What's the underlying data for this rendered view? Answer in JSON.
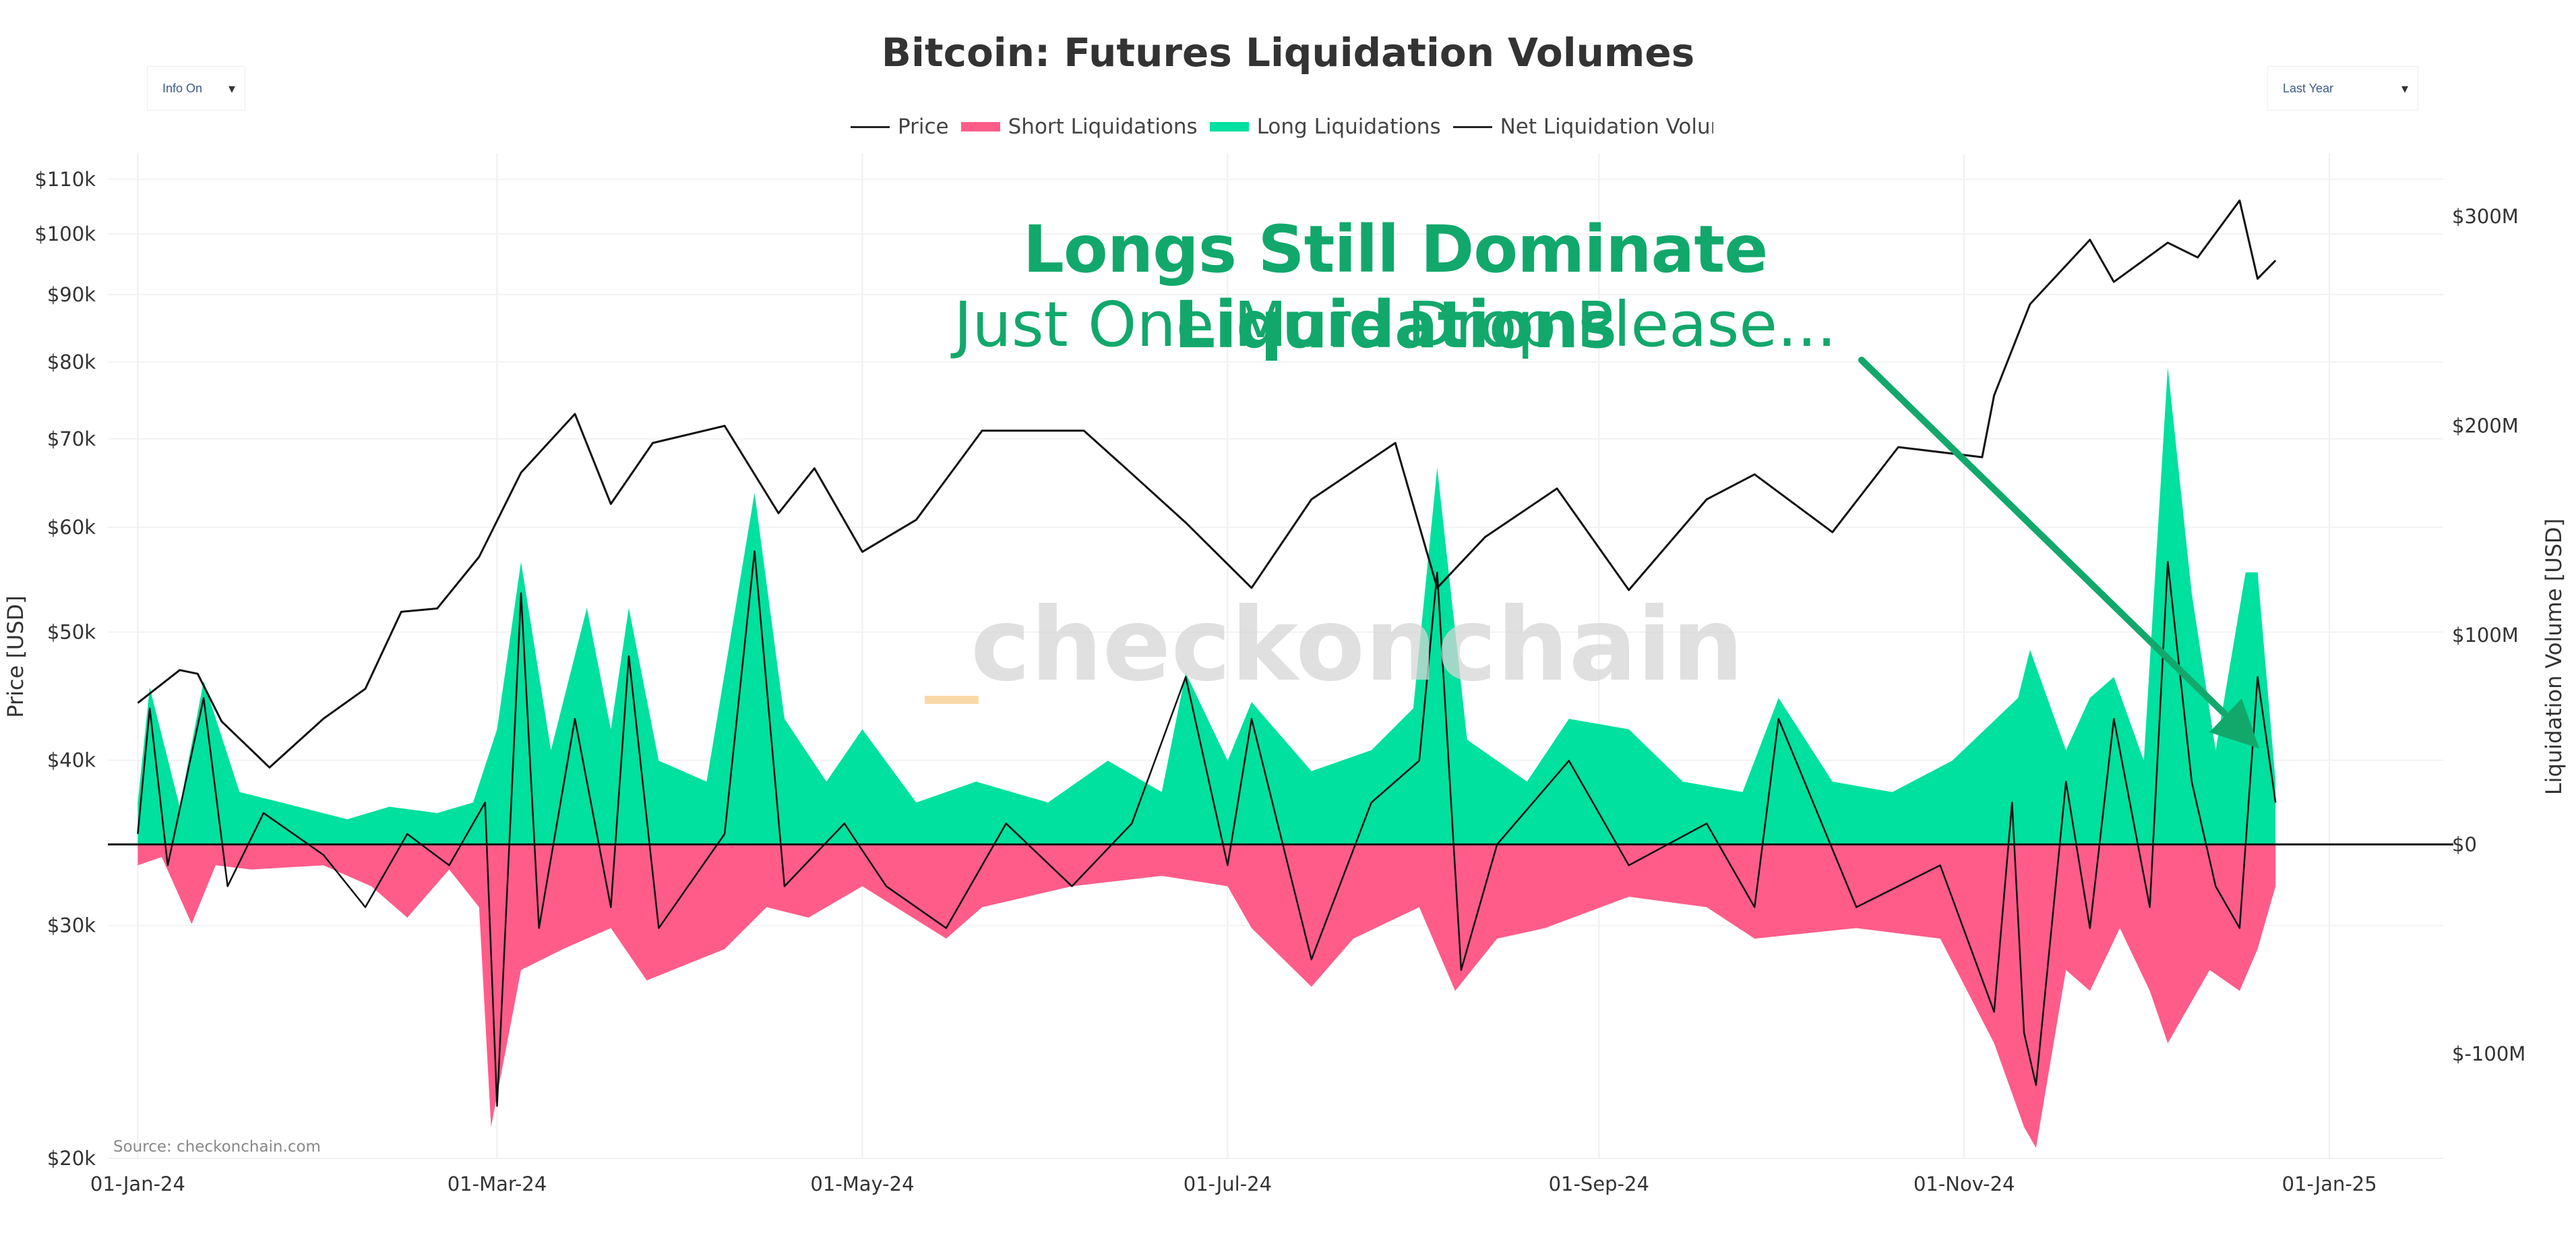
{
  "chart_data": {
    "type": "line",
    "title": "Bitcoin: Futures Liquidation Volumes",
    "headline": "Longs Still Dominate Liquidations",
    "subheadline": "Just One More Drop Please...",
    "watermark": "_checkonchain",
    "source": "Source: checkonchain.com",
    "ylabel_left": "Price [USD]",
    "ylabel_right": "Liquidation Volume [USD]",
    "y_left_scale": "log",
    "y_left_ticks": [
      "$20k",
      "$30k",
      "$40k",
      "$50k",
      "$60k",
      "$70k",
      "$80k",
      "$90k",
      "$100k",
      "$110k"
    ],
    "y_right_ticks": [
      "$-100M",
      "$0",
      "$100M",
      "$200M",
      "$300M"
    ],
    "ylim_left": [
      20000,
      115000
    ],
    "ylim_right": [
      -150000000,
      330000000
    ],
    "x_ticks": [
      "01-Jan-24",
      "01-Mar-24",
      "01-May-24",
      "01-Jul-24",
      "01-Sep-24",
      "01-Nov-24",
      "01-Jan-25"
    ],
    "x_range": [
      "2023-12-27",
      "2025-01-20"
    ],
    "grid": true,
    "legend_position": "top-center",
    "colors": {
      "price": "#111111",
      "short": "#ff5c8a",
      "long": "#00e09e",
      "net": "#111111",
      "headline": "#12a86b"
    },
    "series": [
      {
        "name": "Price",
        "axis": "left",
        "points": [
          [
            "2024-01-01",
            44200
          ],
          [
            "2024-01-08",
            46800
          ],
          [
            "2024-01-11",
            46500
          ],
          [
            "2024-01-15",
            42800
          ],
          [
            "2024-01-23",
            39500
          ],
          [
            "2024-02-01",
            43000
          ],
          [
            "2024-02-08",
            45300
          ],
          [
            "2024-02-14",
            51800
          ],
          [
            "2024-02-20",
            52100
          ],
          [
            "2024-02-27",
            57000
          ],
          [
            "2024-03-05",
            66000
          ],
          [
            "2024-03-14",
            73100
          ],
          [
            "2024-03-20",
            62500
          ],
          [
            "2024-03-27",
            69500
          ],
          [
            "2024-04-08",
            71600
          ],
          [
            "2024-04-17",
            61500
          ],
          [
            "2024-04-23",
            66500
          ],
          [
            "2024-05-01",
            57500
          ],
          [
            "2024-05-10",
            60800
          ],
          [
            "2024-05-21",
            71000
          ],
          [
            "2024-06-07",
            71000
          ],
          [
            "2024-06-14",
            66500
          ],
          [
            "2024-06-24",
            60500
          ],
          [
            "2024-07-05",
            54000
          ],
          [
            "2024-07-15",
            63000
          ],
          [
            "2024-07-29",
            69500
          ],
          [
            "2024-08-05",
            54000
          ],
          [
            "2024-08-13",
            59000
          ],
          [
            "2024-08-25",
            64200
          ],
          [
            "2024-09-06",
            53800
          ],
          [
            "2024-09-19",
            63000
          ],
          [
            "2024-09-27",
            65800
          ],
          [
            "2024-10-10",
            59500
          ],
          [
            "2024-10-21",
            69000
          ],
          [
            "2024-11-04",
            67800
          ],
          [
            "2024-11-06",
            75500
          ],
          [
            "2024-11-12",
            88500
          ],
          [
            "2024-11-22",
            99000
          ],
          [
            "2024-11-26",
            92000
          ],
          [
            "2024-12-05",
            98500
          ],
          [
            "2024-12-10",
            96000
          ],
          [
            "2024-12-17",
            106000
          ],
          [
            "2024-12-20",
            92500
          ],
          [
            "2024-12-23",
            95500
          ]
        ]
      },
      {
        "name": "Short Liquidations",
        "axis": "right",
        "points": [
          [
            "2024-01-01",
            -10000000
          ],
          [
            "2024-01-05",
            -6000000
          ],
          [
            "2024-01-10",
            -38000000
          ],
          [
            "2024-01-14",
            -10000000
          ],
          [
            "2024-01-20",
            -12000000
          ],
          [
            "2024-02-01",
            -10000000
          ],
          [
            "2024-02-09",
            -20000000
          ],
          [
            "2024-02-15",
            -35000000
          ],
          [
            "2024-02-22",
            -12000000
          ],
          [
            "2024-02-27",
            -30000000
          ],
          [
            "2024-02-29",
            -135000000
          ],
          [
            "2024-03-05",
            -60000000
          ],
          [
            "2024-03-12",
            -50000000
          ],
          [
            "2024-03-20",
            -40000000
          ],
          [
            "2024-03-26",
            -65000000
          ],
          [
            "2024-04-08",
            -50000000
          ],
          [
            "2024-04-15",
            -30000000
          ],
          [
            "2024-04-22",
            -35000000
          ],
          [
            "2024-05-01",
            -20000000
          ],
          [
            "2024-05-15",
            -45000000
          ],
          [
            "2024-05-21",
            -30000000
          ],
          [
            "2024-06-05",
            -20000000
          ],
          [
            "2024-06-20",
            -15000000
          ],
          [
            "2024-07-01",
            -20000000
          ],
          [
            "2024-07-05",
            -40000000
          ],
          [
            "2024-07-15",
            -68000000
          ],
          [
            "2024-07-22",
            -45000000
          ],
          [
            "2024-08-02",
            -30000000
          ],
          [
            "2024-08-08",
            -70000000
          ],
          [
            "2024-08-15",
            -45000000
          ],
          [
            "2024-08-23",
            -40000000
          ],
          [
            "2024-09-06",
            -25000000
          ],
          [
            "2024-09-19",
            -30000000
          ],
          [
            "2024-09-27",
            -45000000
          ],
          [
            "2024-10-14",
            -40000000
          ],
          [
            "2024-10-28",
            -45000000
          ],
          [
            "2024-11-06",
            -95000000
          ],
          [
            "2024-11-11",
            -135000000
          ],
          [
            "2024-11-13",
            -145000000
          ],
          [
            "2024-11-18",
            -60000000
          ],
          [
            "2024-11-22",
            -70000000
          ],
          [
            "2024-11-27",
            -40000000
          ],
          [
            "2024-12-02",
            -70000000
          ],
          [
            "2024-12-05",
            -95000000
          ],
          [
            "2024-12-12",
            -60000000
          ],
          [
            "2024-12-17",
            -70000000
          ],
          [
            "2024-12-20",
            -50000000
          ],
          [
            "2024-12-23",
            -20000000
          ]
        ]
      },
      {
        "name": "Long Liquidations",
        "axis": "right",
        "points": [
          [
            "2024-01-01",
            20000000
          ],
          [
            "2024-01-03",
            75000000
          ],
          [
            "2024-01-08",
            18000000
          ],
          [
            "2024-01-12",
            78000000
          ],
          [
            "2024-01-18",
            25000000
          ],
          [
            "2024-01-25",
            20000000
          ],
          [
            "2024-02-05",
            12000000
          ],
          [
            "2024-02-12",
            18000000
          ],
          [
            "2024-02-20",
            15000000
          ],
          [
            "2024-02-26",
            20000000
          ],
          [
            "2024-03-01",
            55000000
          ],
          [
            "2024-03-05",
            135000000
          ],
          [
            "2024-03-10",
            45000000
          ],
          [
            "2024-03-16",
            113000000
          ],
          [
            "2024-03-20",
            55000000
          ],
          [
            "2024-03-23",
            113000000
          ],
          [
            "2024-03-28",
            40000000
          ],
          [
            "2024-04-05",
            30000000
          ],
          [
            "2024-04-13",
            168000000
          ],
          [
            "2024-04-18",
            60000000
          ],
          [
            "2024-04-25",
            30000000
          ],
          [
            "2024-05-01",
            55000000
          ],
          [
            "2024-05-10",
            20000000
          ],
          [
            "2024-05-20",
            30000000
          ],
          [
            "2024-06-01",
            20000000
          ],
          [
            "2024-06-11",
            40000000
          ],
          [
            "2024-06-20",
            25000000
          ],
          [
            "2024-06-24",
            82000000
          ],
          [
            "2024-07-01",
            40000000
          ],
          [
            "2024-07-05",
            68000000
          ],
          [
            "2024-07-15",
            35000000
          ],
          [
            "2024-07-25",
            45000000
          ],
          [
            "2024-08-01",
            65000000
          ],
          [
            "2024-08-05",
            180000000
          ],
          [
            "2024-08-10",
            50000000
          ],
          [
            "2024-08-20",
            30000000
          ],
          [
            "2024-08-27",
            60000000
          ],
          [
            "2024-09-06",
            55000000
          ],
          [
            "2024-09-15",
            30000000
          ],
          [
            "2024-09-25",
            25000000
          ],
          [
            "2024-10-01",
            70000000
          ],
          [
            "2024-10-10",
            30000000
          ],
          [
            "2024-10-20",
            25000000
          ],
          [
            "2024-10-30",
            40000000
          ],
          [
            "2024-11-10",
            70000000
          ],
          [
            "2024-11-12",
            93000000
          ],
          [
            "2024-11-18",
            45000000
          ],
          [
            "2024-11-22",
            70000000
          ],
          [
            "2024-11-26",
            80000000
          ],
          [
            "2024-12-01",
            40000000
          ],
          [
            "2024-12-05",
            228000000
          ],
          [
            "2024-12-09",
            120000000
          ],
          [
            "2024-12-13",
            45000000
          ],
          [
            "2024-12-18",
            130000000
          ],
          [
            "2024-12-20",
            130000000
          ],
          [
            "2024-12-23",
            30000000
          ]
        ]
      },
      {
        "name": "Net Liquidation Volume",
        "axis": "right",
        "points": [
          [
            "2024-01-01",
            5000000
          ],
          [
            "2024-01-03",
            65000000
          ],
          [
            "2024-01-06",
            -10000000
          ],
          [
            "2024-01-12",
            70000000
          ],
          [
            "2024-01-16",
            -20000000
          ],
          [
            "2024-01-22",
            15000000
          ],
          [
            "2024-02-01",
            -5000000
          ],
          [
            "2024-02-08",
            -30000000
          ],
          [
            "2024-02-15",
            5000000
          ],
          [
            "2024-02-22",
            -10000000
          ],
          [
            "2024-02-28",
            20000000
          ],
          [
            "2024-03-01",
            -125000000
          ],
          [
            "2024-03-05",
            120000000
          ],
          [
            "2024-03-08",
            -40000000
          ],
          [
            "2024-03-14",
            60000000
          ],
          [
            "2024-03-20",
            -30000000
          ],
          [
            "2024-03-23",
            90000000
          ],
          [
            "2024-03-28",
            -40000000
          ],
          [
            "2024-04-08",
            5000000
          ],
          [
            "2024-04-13",
            140000000
          ],
          [
            "2024-04-18",
            -20000000
          ],
          [
            "2024-04-28",
            10000000
          ],
          [
            "2024-05-05",
            -20000000
          ],
          [
            "2024-05-15",
            -40000000
          ],
          [
            "2024-05-25",
            10000000
          ],
          [
            "2024-06-05",
            -20000000
          ],
          [
            "2024-06-15",
            10000000
          ],
          [
            "2024-06-24",
            80000000
          ],
          [
            "2024-07-01",
            -10000000
          ],
          [
            "2024-07-05",
            60000000
          ],
          [
            "2024-07-15",
            -55000000
          ],
          [
            "2024-07-25",
            20000000
          ],
          [
            "2024-08-02",
            40000000
          ],
          [
            "2024-08-05",
            130000000
          ],
          [
            "2024-08-09",
            -60000000
          ],
          [
            "2024-08-15",
            0
          ],
          [
            "2024-08-27",
            40000000
          ],
          [
            "2024-09-06",
            -10000000
          ],
          [
            "2024-09-19",
            10000000
          ],
          [
            "2024-09-27",
            -30000000
          ],
          [
            "2024-10-01",
            60000000
          ],
          [
            "2024-10-14",
            -30000000
          ],
          [
            "2024-10-28",
            -10000000
          ],
          [
            "2024-11-06",
            -80000000
          ],
          [
            "2024-11-09",
            20000000
          ],
          [
            "2024-11-11",
            -90000000
          ],
          [
            "2024-11-13",
            -115000000
          ],
          [
            "2024-11-18",
            30000000
          ],
          [
            "2024-11-22",
            -40000000
          ],
          [
            "2024-11-26",
            60000000
          ],
          [
            "2024-12-02",
            -30000000
          ],
          [
            "2024-12-05",
            135000000
          ],
          [
            "2024-12-09",
            30000000
          ],
          [
            "2024-12-13",
            -20000000
          ],
          [
            "2024-12-17",
            -40000000
          ],
          [
            "2024-12-20",
            80000000
          ],
          [
            "2024-12-23",
            20000000
          ]
        ]
      }
    ]
  },
  "controls": {
    "info_dropdown": {
      "label": "Info On",
      "caret": "▾"
    },
    "range_dropdown": {
      "label": "Last Year",
      "caret": "▾"
    }
  },
  "legend": [
    {
      "label": "Price",
      "kind": "line"
    },
    {
      "label": "Short Liquidations",
      "kind": "short"
    },
    {
      "label": "Long Liquidations",
      "kind": "long"
    },
    {
      "label": "Net Liquidation Volume",
      "kind": "line"
    }
  ]
}
